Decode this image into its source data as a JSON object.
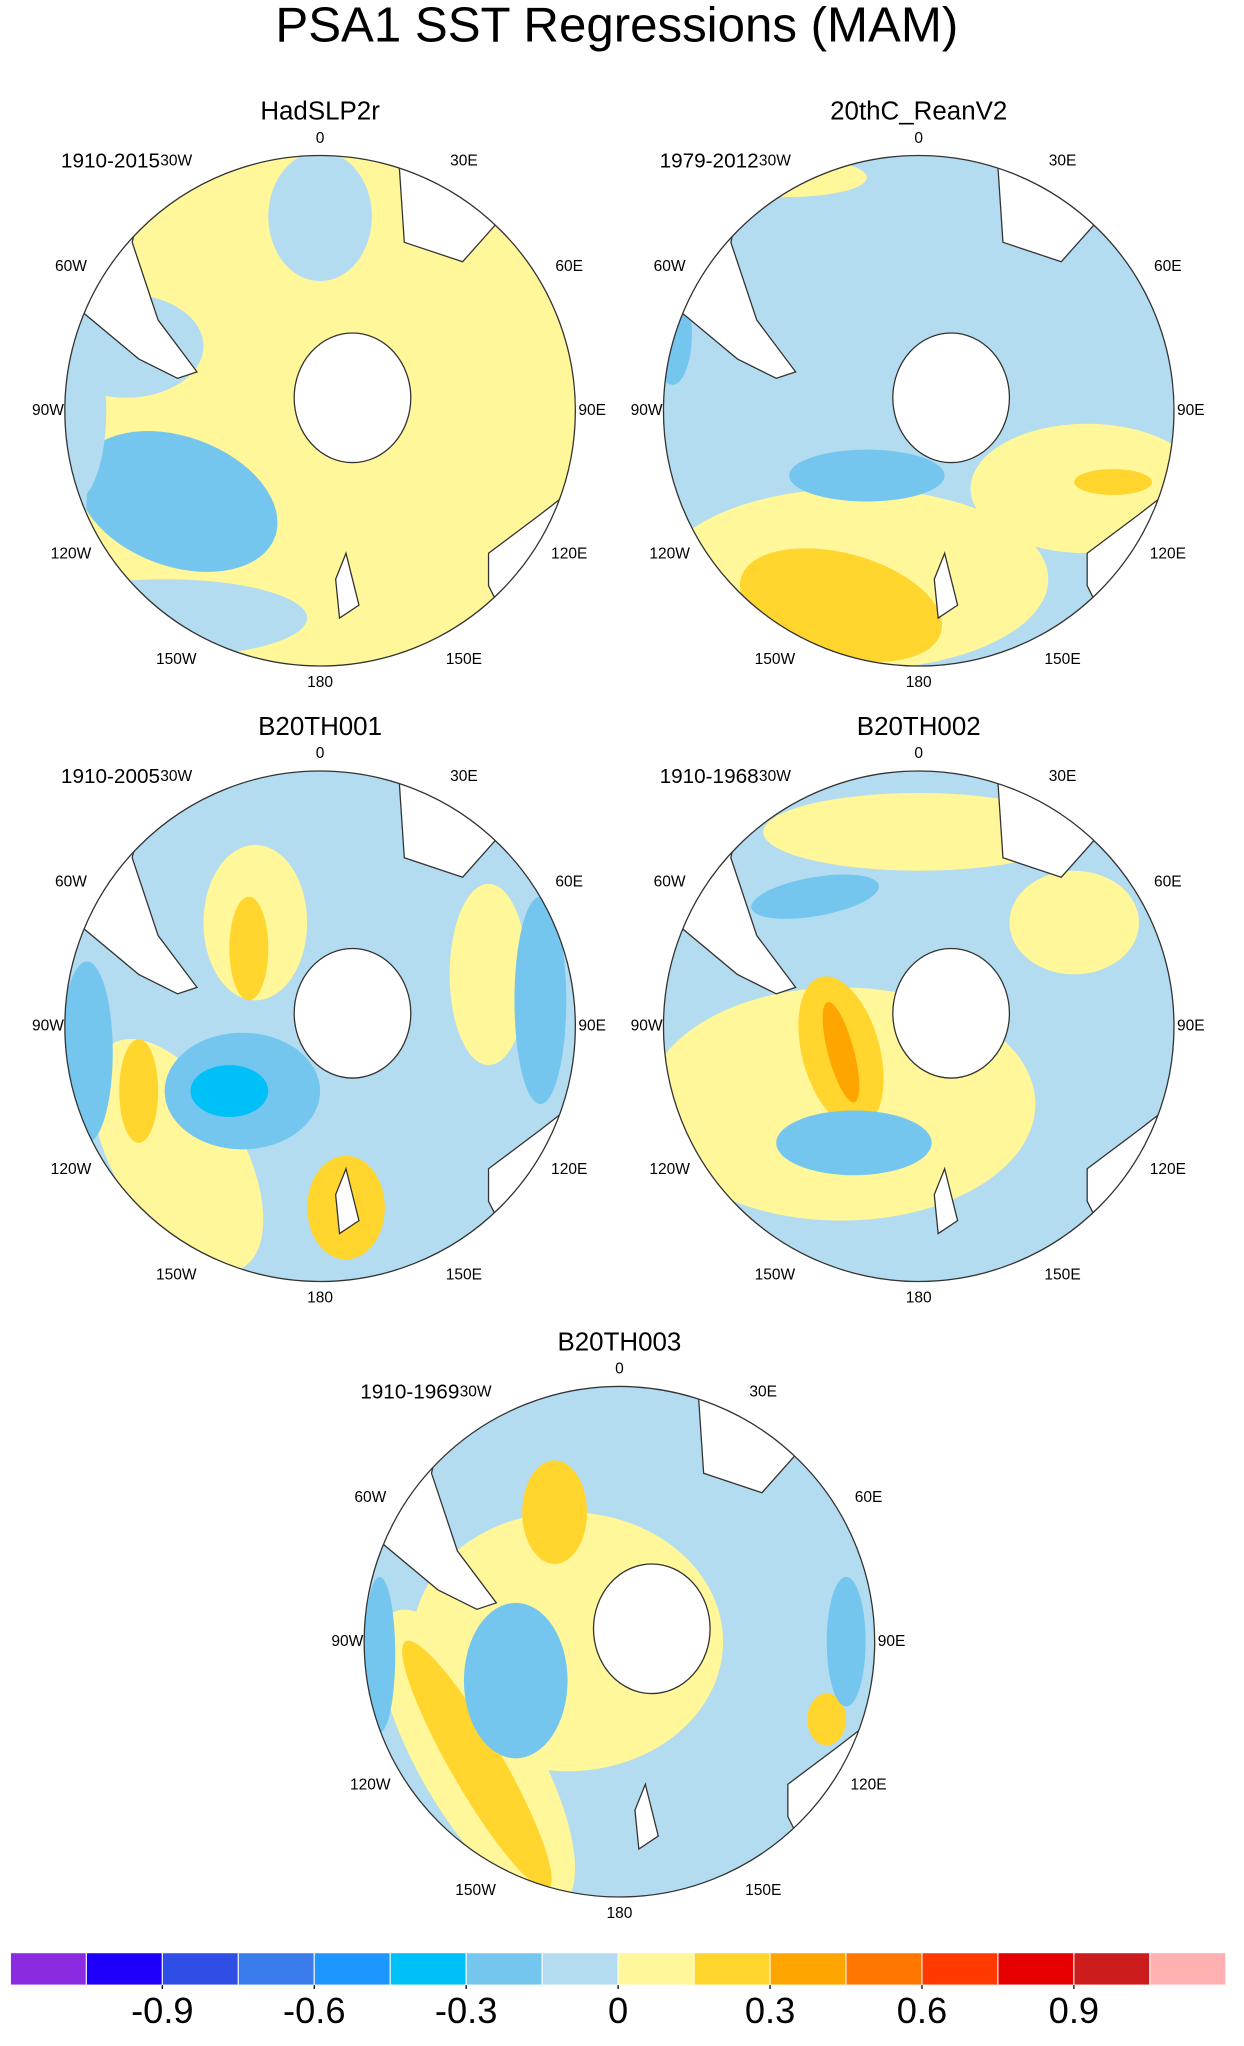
{
  "title": "PSA1 SST Regressions (MAM)",
  "longitude_labels": [
    "0",
    "30E",
    "60E",
    "90E",
    "120E",
    "150E",
    "180",
    "150W",
    "120W",
    "90W",
    "60W",
    "30W"
  ],
  "panels": [
    {
      "title": "HadSLP2r",
      "period": "1910-2015"
    },
    {
      "title": "20thC_ReanV2",
      "period": "1979-2012"
    },
    {
      "title": "B20TH001",
      "period": "1910-2005"
    },
    {
      "title": "B20TH002",
      "period": "1910-1968"
    },
    {
      "title": "B20TH003",
      "period": "1910-1969"
    }
  ],
  "colorbar": {
    "colors": [
      "#8a2be2",
      "#1e00fa",
      "#2e4ee6",
      "#3a7cec",
      "#1e96ff",
      "#00c0f8",
      "#74c6ef",
      "#b3dcf0",
      "#fff799",
      "#ffd52e",
      "#ffa500",
      "#ff7700",
      "#ff3a00",
      "#e60000",
      "#cd1c1c",
      "#ffb0b0"
    ],
    "xlim": [
      -1.2,
      1.2
    ],
    "xticks": [
      -0.9,
      -0.6,
      -0.3,
      0,
      0.3,
      0.6,
      0.9
    ]
  }
}
